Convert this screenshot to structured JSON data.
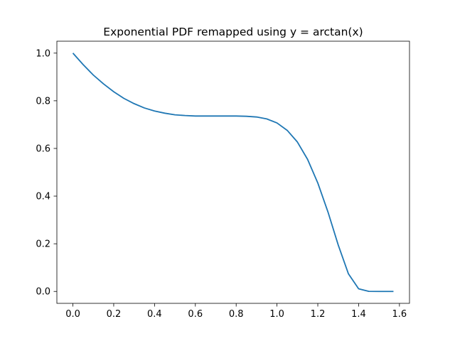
{
  "chart_data": {
    "type": "line",
    "title": "Exponential PDF remapped using y = arctan(x)",
    "xlabel": "",
    "ylabel": "",
    "xlim": [
      -0.0785,
      1.6493
    ],
    "ylim": [
      -0.05,
      1.05
    ],
    "grid": false,
    "legend": "none",
    "x_ticks": [
      0.0,
      0.2,
      0.4,
      0.6,
      0.8,
      1.0,
      1.2,
      1.4,
      1.6
    ],
    "x_tick_labels": [
      "0.0",
      "0.2",
      "0.4",
      "0.6",
      "0.8",
      "1.0",
      "1.2",
      "1.4",
      "1.6"
    ],
    "y_ticks": [
      0.0,
      0.2,
      0.4,
      0.6,
      0.8,
      1.0
    ],
    "y_tick_labels": [
      "0.0",
      "0.2",
      "0.4",
      "0.6",
      "0.8",
      "1.0"
    ],
    "series": [
      {
        "color": "#1f77b4",
        "x": [
          0.0,
          0.05,
          0.1,
          0.15,
          0.2,
          0.25,
          0.3,
          0.35,
          0.4,
          0.45,
          0.5,
          0.55,
          0.6,
          0.65,
          0.7,
          0.75,
          0.8,
          0.85,
          0.9,
          0.95,
          1.0,
          1.05,
          1.1,
          1.15,
          1.2,
          1.25,
          1.3,
          1.35,
          1.4,
          1.45,
          1.5,
          1.55,
          1.5708
        ],
        "y": [
          1.0,
          0.952,
          0.908,
          0.871,
          0.838,
          0.81,
          0.788,
          0.77,
          0.757,
          0.748,
          0.741,
          0.738,
          0.736,
          0.736,
          0.736,
          0.736,
          0.736,
          0.735,
          0.732,
          0.724,
          0.707,
          0.676,
          0.627,
          0.554,
          0.455,
          0.333,
          0.195,
          0.074,
          0.011,
          0.0002,
          0.0,
          0.0,
          0.0
        ]
      }
    ]
  }
}
